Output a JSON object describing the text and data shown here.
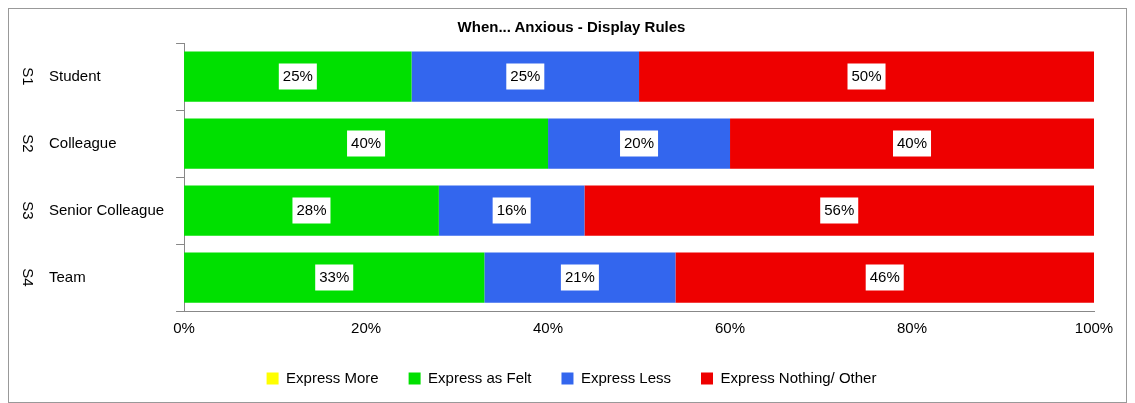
{
  "chart_data": {
    "type": "bar",
    "orientation": "horizontal",
    "stacked": true,
    "title": "When... Anxious - Display Rules",
    "categories": [
      "Student",
      "Colleague",
      "Senior Colleague",
      "Team"
    ],
    "series": [
      {
        "name": "Express More",
        "color": "#ffff00",
        "values": [
          0,
          0,
          0,
          0
        ],
        "value_labels": [
          null,
          null,
          null,
          null
        ]
      },
      {
        "name": "Express as Felt",
        "color": "#00e000",
        "values": [
          25,
          40,
          28,
          33
        ],
        "value_labels": [
          "25%",
          "40%",
          "28%",
          "33%"
        ]
      },
      {
        "name": "Express Less",
        "color": "#3366ee",
        "values": [
          25,
          20,
          16,
          21
        ],
        "value_labels": [
          "25%",
          "20%",
          "16%",
          "21%"
        ]
      },
      {
        "name": "Express Nothing/ Other",
        "color": "#ee0000",
        "values": [
          50,
          40,
          56,
          46
        ],
        "value_labels": [
          "50%",
          "40%",
          "56%",
          "46%"
        ]
      }
    ],
    "xlim": [
      0,
      100
    ],
    "xticks": [
      {
        "value": 0,
        "label": "0%"
      },
      {
        "value": 20,
        "label": "20%"
      },
      {
        "value": 40,
        "label": "40%"
      },
      {
        "value": 60,
        "label": "60%"
      },
      {
        "value": 80,
        "label": "80%"
      },
      {
        "value": 100,
        "label": "100%"
      }
    ],
    "annotations": [
      "S1",
      "S2",
      "S3",
      "S4"
    ],
    "grid": false,
    "legend": "bottom"
  }
}
